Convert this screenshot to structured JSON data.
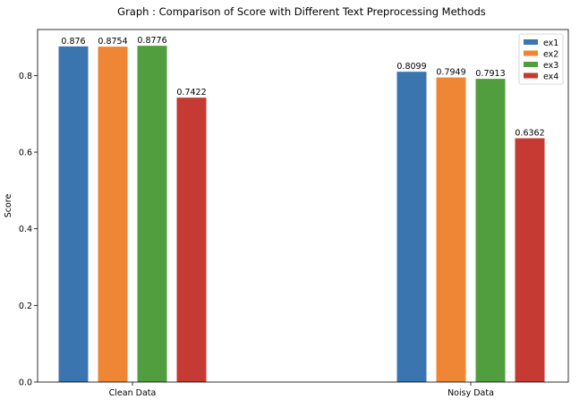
{
  "chart_data": {
    "type": "bar",
    "title": "Graph : Comparison of Score with Different Text Preprocessing Methods",
    "xlabel": "",
    "ylabel": "Score",
    "categories": [
      "Clean Data",
      "Noisy Data"
    ],
    "series": [
      {
        "name": "ex1",
        "color": "#3a75b0",
        "values": [
          0.876,
          0.8099
        ],
        "labels": [
          "0.876",
          "0.8099"
        ]
      },
      {
        "name": "ex2",
        "color": "#ef8636",
        "values": [
          0.8754,
          0.7949
        ],
        "labels": [
          "0.8754",
          "0.7949"
        ]
      },
      {
        "name": "ex3",
        "color": "#519e3e",
        "values": [
          0.8776,
          0.7913
        ],
        "labels": [
          "0.8776",
          "0.7913"
        ]
      },
      {
        "name": "ex4",
        "color": "#c53a32",
        "values": [
          0.7422,
          0.6362
        ],
        "labels": [
          "0.7422",
          "0.6362"
        ]
      }
    ],
    "ylim": [
      0,
      0.92
    ],
    "yticks": [
      "0.0",
      "0.2",
      "0.4",
      "0.6",
      "0.8"
    ],
    "grid": false,
    "legend_position": "top-right"
  }
}
